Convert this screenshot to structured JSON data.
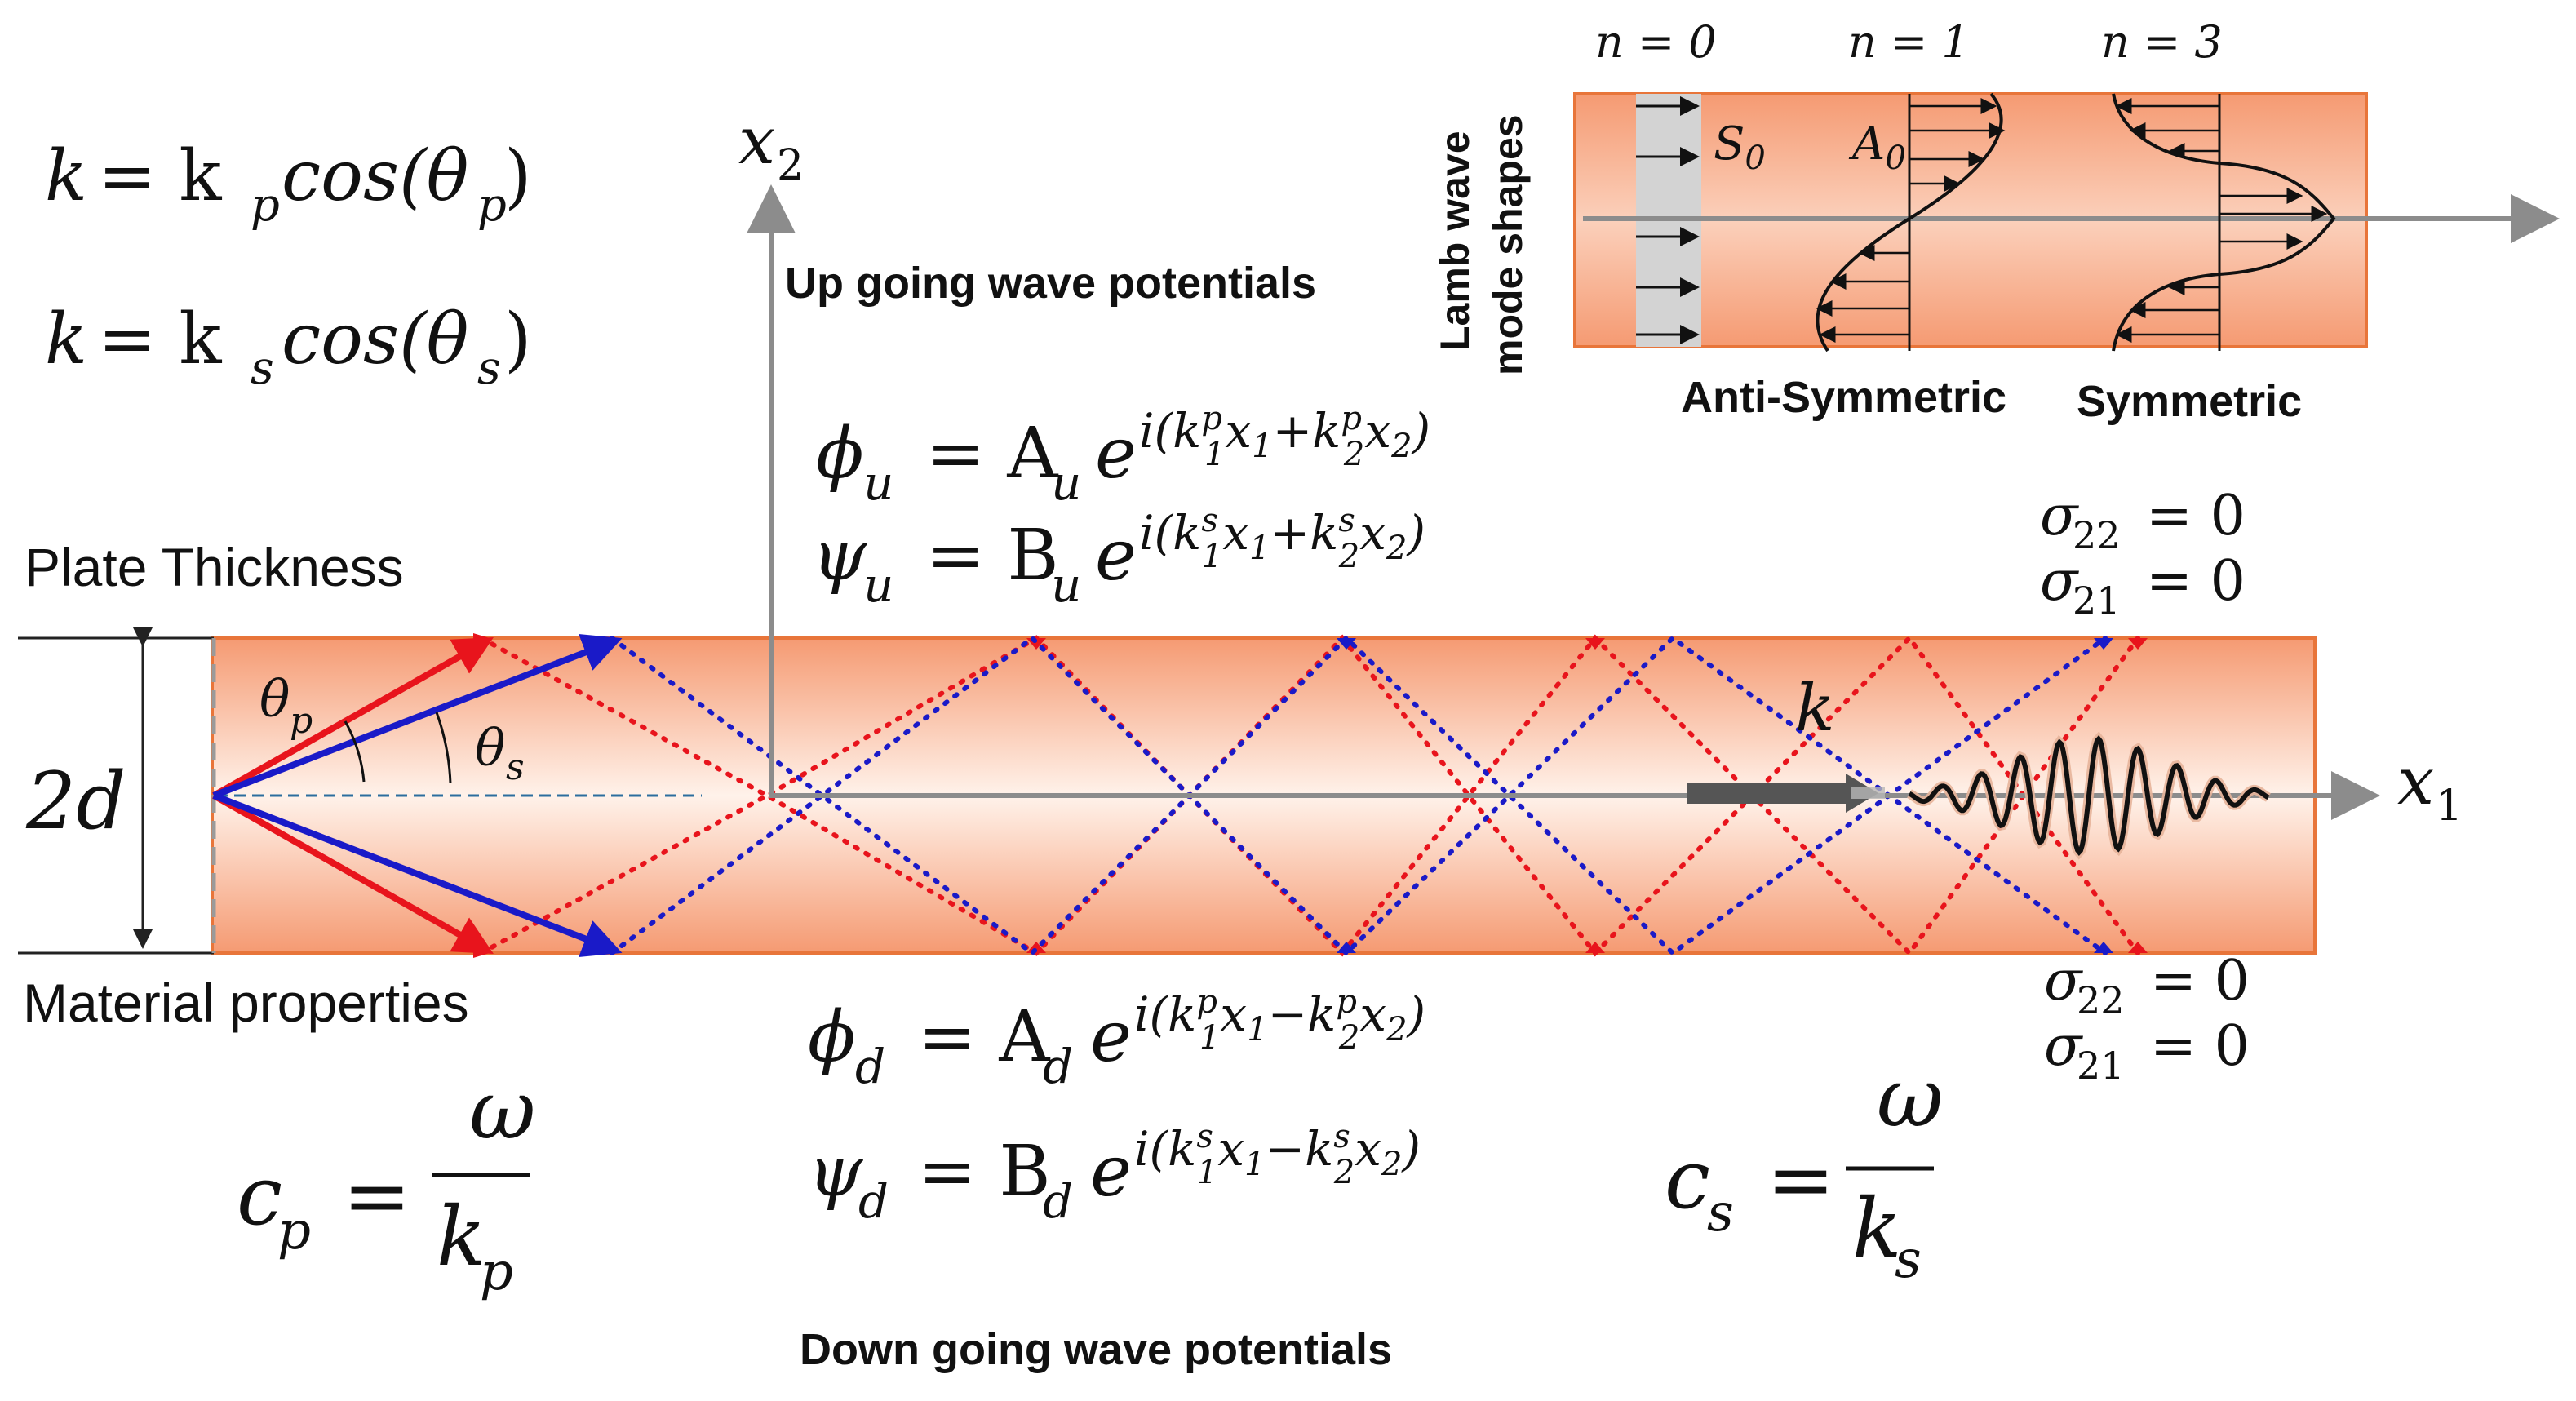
{
  "colors": {
    "plate_orange": "#F4A07A",
    "plate_edge": "#E8753A",
    "p_wave": "#E8141C",
    "s_wave": "#1A1AC8",
    "axis": "#8C8C8C",
    "text": "#111111",
    "dashed_center": "#2C6E9E",
    "s0_fill": "#D3D3D3"
  },
  "dispersion": {
    "k_p_lhs": "k",
    "k_p_rhs": "= k",
    "k_p_sub": "p",
    "k_p_fn": "cos(θ",
    "k_p_fn_sub": "p",
    "k_p_close": ")",
    "k_s_lhs": "k",
    "k_s_rhs": "= k",
    "k_s_sub": "s",
    "k_s_fn": "cos(θ",
    "k_s_fn_sub": "s",
    "k_s_close": ")"
  },
  "labels": {
    "plate_thickness": "Plate Thickness",
    "thickness_symbol": "2d",
    "material_properties": "Material properties",
    "up_going": "Up going wave potentials",
    "down_going": "Down going wave potentials",
    "x2_axis": "x",
    "x2_sub": "2",
    "x1_axis": "x",
    "x1_sub": "1",
    "k_arrow": "k",
    "theta_p": "θ",
    "theta_p_sub": "p",
    "theta_s": "θ",
    "theta_s_sub": "s"
  },
  "up_potentials": {
    "phi_u": "ϕ",
    "phi_u_sub": "u",
    "phi_u_eq": "= A",
    "phi_u_amp_sub": "u",
    "phi_u_exp": "e",
    "phi_u_sup": "i(k",
    "phi_u_sup1": "p",
    "phi_u_sup1b": "1",
    "phi_u_sup2": "x",
    "phi_u_sup2b": "1",
    "phi_u_sup3": "+k",
    "phi_u_sup3a": "p",
    "phi_u_sup3b": "2",
    "phi_u_sup4": "x",
    "phi_u_sup4b": "2",
    "phi_u_sup5": ")",
    "psi_u": "ψ",
    "psi_u_sub": "u",
    "psi_u_eq": "= B",
    "psi_u_amp_sub": "u",
    "psi_u_exp": "e",
    "psi_u_sup": "i(k",
    "psi_u_sup1": "s",
    "psi_u_sup1b": "1",
    "psi_u_sup2": "x",
    "psi_u_sup2b": "1",
    "psi_u_sup3": "+k",
    "psi_u_sup3a": "s",
    "psi_u_sup3b": "2",
    "psi_u_sup4": "x",
    "psi_u_sup4b": "2",
    "psi_u_sup5": ")"
  },
  "down_potentials": {
    "phi_d": "ϕ",
    "phi_d_sub": "d",
    "phi_d_eq": "= A",
    "phi_d_amp_sub": "d",
    "phi_d_exp": "e",
    "phi_d_sup": "i(k",
    "phi_d_sup1": "p",
    "phi_d_sup1b": "1",
    "phi_d_sup2": "x",
    "phi_d_sup2b": "1",
    "phi_d_sup3": "−k",
    "phi_d_sup3a": "p",
    "phi_d_sup3b": "2",
    "phi_d_sup4": "x",
    "phi_d_sup4b": "2",
    "phi_d_sup5": ")",
    "psi_d": "ψ",
    "psi_d_sub": "d",
    "psi_d_eq": "= B",
    "psi_d_amp_sub": "d",
    "psi_d_exp": "e",
    "psi_d_sup": "i(k",
    "psi_d_sup1": "s",
    "psi_d_sup1b": "1",
    "psi_d_sup2": "x",
    "psi_d_sup2b": "1",
    "psi_d_sup3": "−k",
    "psi_d_sup3a": "s",
    "psi_d_sup3b": "2",
    "psi_d_sup4": "x",
    "psi_d_sup4b": "2",
    "psi_d_sup5": ")"
  },
  "boundary_top": {
    "s22": "σ",
    "s22_sub": "22",
    "s22_eq": "= 0",
    "s21": "σ",
    "s21_sub": "21",
    "s21_eq": "= 0"
  },
  "boundary_bottom": {
    "s22": "σ",
    "s22_sub": "22",
    "s22_eq": "= 0",
    "s21": "σ",
    "s21_sub": "21",
    "s21_eq": "= 0"
  },
  "velocities": {
    "cp_lhs": "c",
    "cp_sub": "p",
    "cp_eq": "=",
    "cp_num": "ω",
    "cp_den": "k",
    "cp_den_sub": "p",
    "cs_lhs": "c",
    "cs_sub": "s",
    "cs_eq": "=",
    "cs_num": "ω",
    "cs_den": "k",
    "cs_den_sub": "s"
  },
  "inset": {
    "side_title_1": "Lamb wave",
    "side_title_2": "mode shapes",
    "n0": "n = 0",
    "n1": "n = 1",
    "n3": "n = 3",
    "s0": "S",
    "s0_sub": "0",
    "a0": "A",
    "a0_sub": "0",
    "anti_symmetric": "Anti-Symmetric",
    "symmetric": "Symmetric"
  }
}
